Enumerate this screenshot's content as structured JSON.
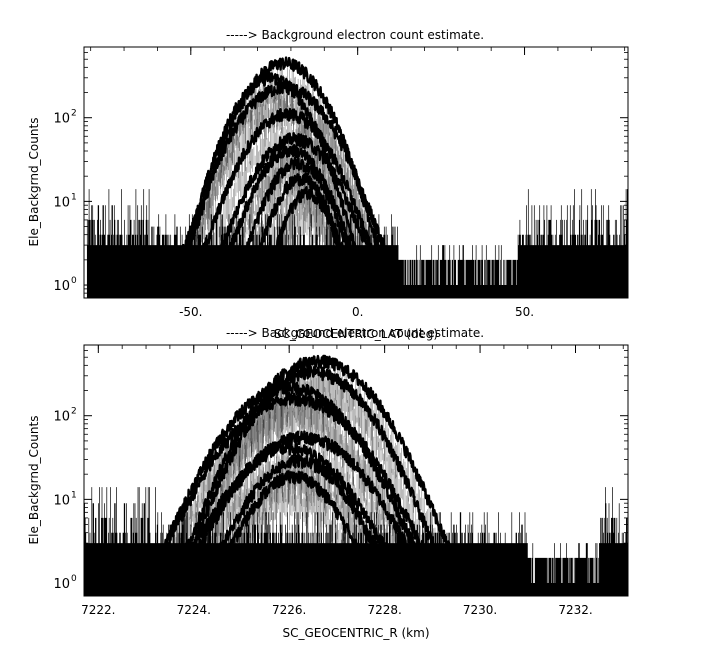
{
  "chart_data": [
    {
      "type": "line",
      "title": "-----> Background electron count estimate.",
      "xlabel": "SC_GEOCENTRIC_LAT (deg)",
      "ylabel": "Ele_Backgrnd_Counts",
      "yscale": "log",
      "xlim": [
        -82,
        81
      ],
      "ylim": [
        0.7,
        700
      ],
      "grid": false,
      "x_ticks": [
        {
          "value": -50,
          "label": "-50."
        },
        {
          "value": 0,
          "label": "0."
        },
        {
          "value": 50,
          "label": "50."
        }
      ],
      "y_ticks": [
        {
          "value": 1,
          "base": "10",
          "exp": "0"
        },
        {
          "value": 10,
          "base": "10",
          "exp": "1"
        },
        {
          "value": 100,
          "base": "10",
          "exp": "2"
        }
      ],
      "background_noise": {
        "x_range": [
          -81,
          81
        ],
        "levels": [
          1,
          2,
          3,
          4,
          5
        ],
        "enhanced_ranges": [
          [
            -81,
            -62
          ],
          [
            48,
            81
          ]
        ],
        "gap_range": [
          12,
          48
        ]
      },
      "series": [
        {
          "center": -22,
          "half_width": 30,
          "peak": 450
        },
        {
          "center": -26,
          "half_width": 27,
          "peak": 300
        },
        {
          "center": -22,
          "half_width": 32,
          "peak": 230
        },
        {
          "center": -21,
          "half_width": 27,
          "peak": 110
        },
        {
          "center": -19,
          "half_width": 24,
          "peak": 55
        },
        {
          "center": -20,
          "half_width": 20,
          "peak": 40
        },
        {
          "center": -18,
          "half_width": 17,
          "peak": 28
        },
        {
          "center": -17,
          "half_width": 14,
          "peak": 18
        },
        {
          "center": -15,
          "half_width": 11,
          "peak": 12
        }
      ]
    },
    {
      "type": "line",
      "title": "-----> Background electron count estimate.",
      "xlabel": "SC_GEOCENTRIC_R (km)",
      "ylabel": "Ele_Backgrnd_Counts",
      "yscale": "log",
      "xlim": [
        7221.7,
        7233.1
      ],
      "ylim": [
        0.7,
        700
      ],
      "grid": false,
      "x_ticks": [
        {
          "value": 7222,
          "label": "7222."
        },
        {
          "value": 7224,
          "label": "7224."
        },
        {
          "value": 7226,
          "label": "7226."
        },
        {
          "value": 7228,
          "label": "7228."
        },
        {
          "value": 7230,
          "label": "7230."
        },
        {
          "value": 7232,
          "label": "7232."
        }
      ],
      "y_ticks": [
        {
          "value": 1,
          "base": "10",
          "exp": "0"
        },
        {
          "value": 10,
          "base": "10",
          "exp": "1"
        },
        {
          "value": 100,
          "base": "10",
          "exp": "2"
        }
      ],
      "background_noise": {
        "x_range": [
          7221.7,
          7233.1
        ],
        "levels": [
          1,
          2,
          3,
          4,
          5
        ],
        "enhanced_ranges": [
          [
            7221.7,
            7223.2
          ],
          [
            7232.5,
            7233.1
          ]
        ],
        "gap_range": [
          7231.0,
          7232.5
        ]
      },
      "series": [
        {
          "center": 7226.6,
          "half_width": 2.9,
          "peak": 450
        },
        {
          "center": 7226.5,
          "half_width": 2.7,
          "peak": 330
        },
        {
          "center": 7226.0,
          "half_width": 2.8,
          "peak": 220
        },
        {
          "center": 7226.1,
          "half_width": 2.9,
          "peak": 160
        },
        {
          "center": 7226.3,
          "half_width": 2.4,
          "peak": 55
        },
        {
          "center": 7226.0,
          "half_width": 2.2,
          "peak": 40
        },
        {
          "center": 7226.2,
          "half_width": 1.8,
          "peak": 28
        },
        {
          "center": 7226.1,
          "half_width": 1.5,
          "peak": 18
        }
      ]
    }
  ]
}
